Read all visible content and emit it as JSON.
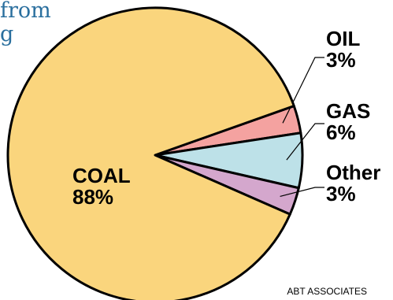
{
  "title_fragments": [
    "from",
    "g"
  ],
  "chart_data": {
    "type": "pie",
    "slices": [
      {
        "label": "COAL",
        "percent_label": "88%",
        "value": 88,
        "color": "#fad57d"
      },
      {
        "label": "OIL",
        "percent_label": "3%",
        "value": 3,
        "color": "#f4a2a0"
      },
      {
        "label": "GAS",
        "percent_label": "6%",
        "value": 6,
        "color": "#bde1e8"
      },
      {
        "label": "Other",
        "percent_label": "3%",
        "value": 3,
        "color": "#d4a7cd"
      }
    ],
    "legend": "none",
    "grid": false
  },
  "source": "ABT ASSOCIATES"
}
